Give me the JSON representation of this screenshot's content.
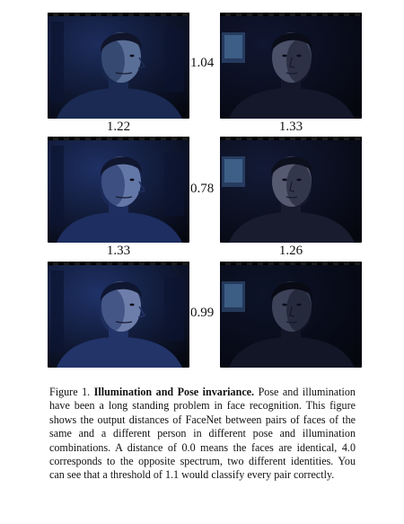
{
  "figure": {
    "pairs": [
      {
        "row": 1,
        "between": "1.04",
        "below_left": "1.22",
        "below_right": "1.33"
      },
      {
        "row": 2,
        "between": "0.78",
        "below_left": "1.33",
        "below_right": "1.26"
      },
      {
        "row": 3,
        "between": "0.99"
      }
    ],
    "photos": [
      {
        "name": "face-row1-left",
        "skin": "#5a6f97",
        "shade": "#1a2a52",
        "bg": "#1c2c5c",
        "hair": "#10152a",
        "facing": "right"
      },
      {
        "name": "face-row1-right",
        "skin": "#4a5068",
        "shade": "#15182a",
        "bg": "#101630",
        "hair": "#0a0c18",
        "facing": "front"
      },
      {
        "name": "face-row2-left",
        "skin": "#6478a8",
        "shade": "#1e2e60",
        "bg": "#1e3064",
        "hair": "#10162e",
        "facing": "right"
      },
      {
        "name": "face-row2-right",
        "skin": "#555a70",
        "shade": "#181c2e",
        "bg": "#131a36",
        "hair": "#0c0f1c",
        "facing": "front"
      },
      {
        "name": "face-row3-left",
        "skin": "#6e7eaa",
        "shade": "#223468",
        "bg": "#1f3268",
        "hair": "#0f1630",
        "facing": "right"
      },
      {
        "name": "face-row3-right",
        "skin": "#3c4258",
        "shade": "#121626",
        "bg": "#0d1328",
        "hair": "#080a14",
        "facing": "front"
      }
    ]
  },
  "caption": {
    "label": "Figure 1.",
    "title": "Illumination and Pose invariance.",
    "body": " Pose and illumination have been a long standing problem in face recognition. This figure shows the output distances of FaceNet between pairs of faces of the same and a different person in different pose and illumination combinations. A distance of 0.0 means the faces are identical, 4.0 corresponds to the opposite spectrum, two different identities. You can see that a threshold of 1.1 would classify every pair correctly."
  }
}
